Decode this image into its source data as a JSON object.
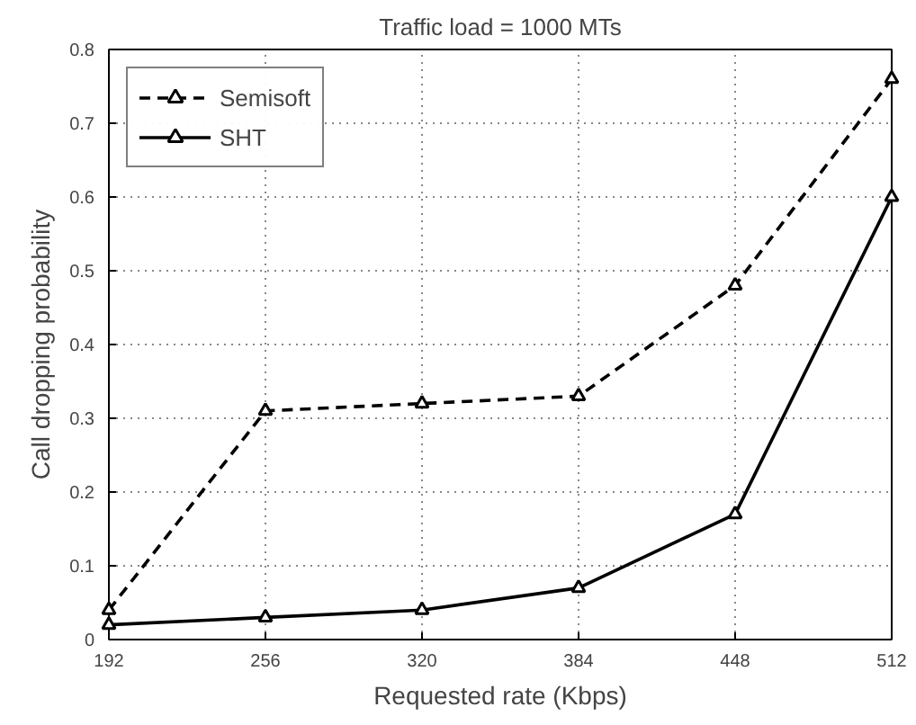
{
  "chart_data": {
    "type": "line",
    "title": "Traffic load = 1000 MTs",
    "xlabel": "Requested rate (Kbps)",
    "ylabel": "Call dropping probability",
    "x": [
      192,
      256,
      320,
      384,
      448,
      512
    ],
    "series": [
      {
        "name": "Semisoft",
        "color": "#000000",
        "line_style": "dashed",
        "marker": "triangle",
        "values": [
          0.04,
          0.31,
          0.32,
          0.33,
          0.48,
          0.76
        ]
      },
      {
        "name": "SHT",
        "color": "#000000",
        "line_style": "solid",
        "marker": "triangle",
        "values": [
          0.02,
          0.03,
          0.04,
          0.07,
          0.17,
          0.6
        ]
      }
    ],
    "xlim": [
      192,
      512
    ],
    "xticks": [
      192,
      256,
      320,
      384,
      448,
      512
    ],
    "ylim": [
      0,
      0.8
    ],
    "yticks": [
      0,
      0.1,
      0.2,
      0.3,
      0.4,
      0.5,
      0.6,
      0.7,
      0.8
    ],
    "grid": true,
    "legend": "top left"
  }
}
